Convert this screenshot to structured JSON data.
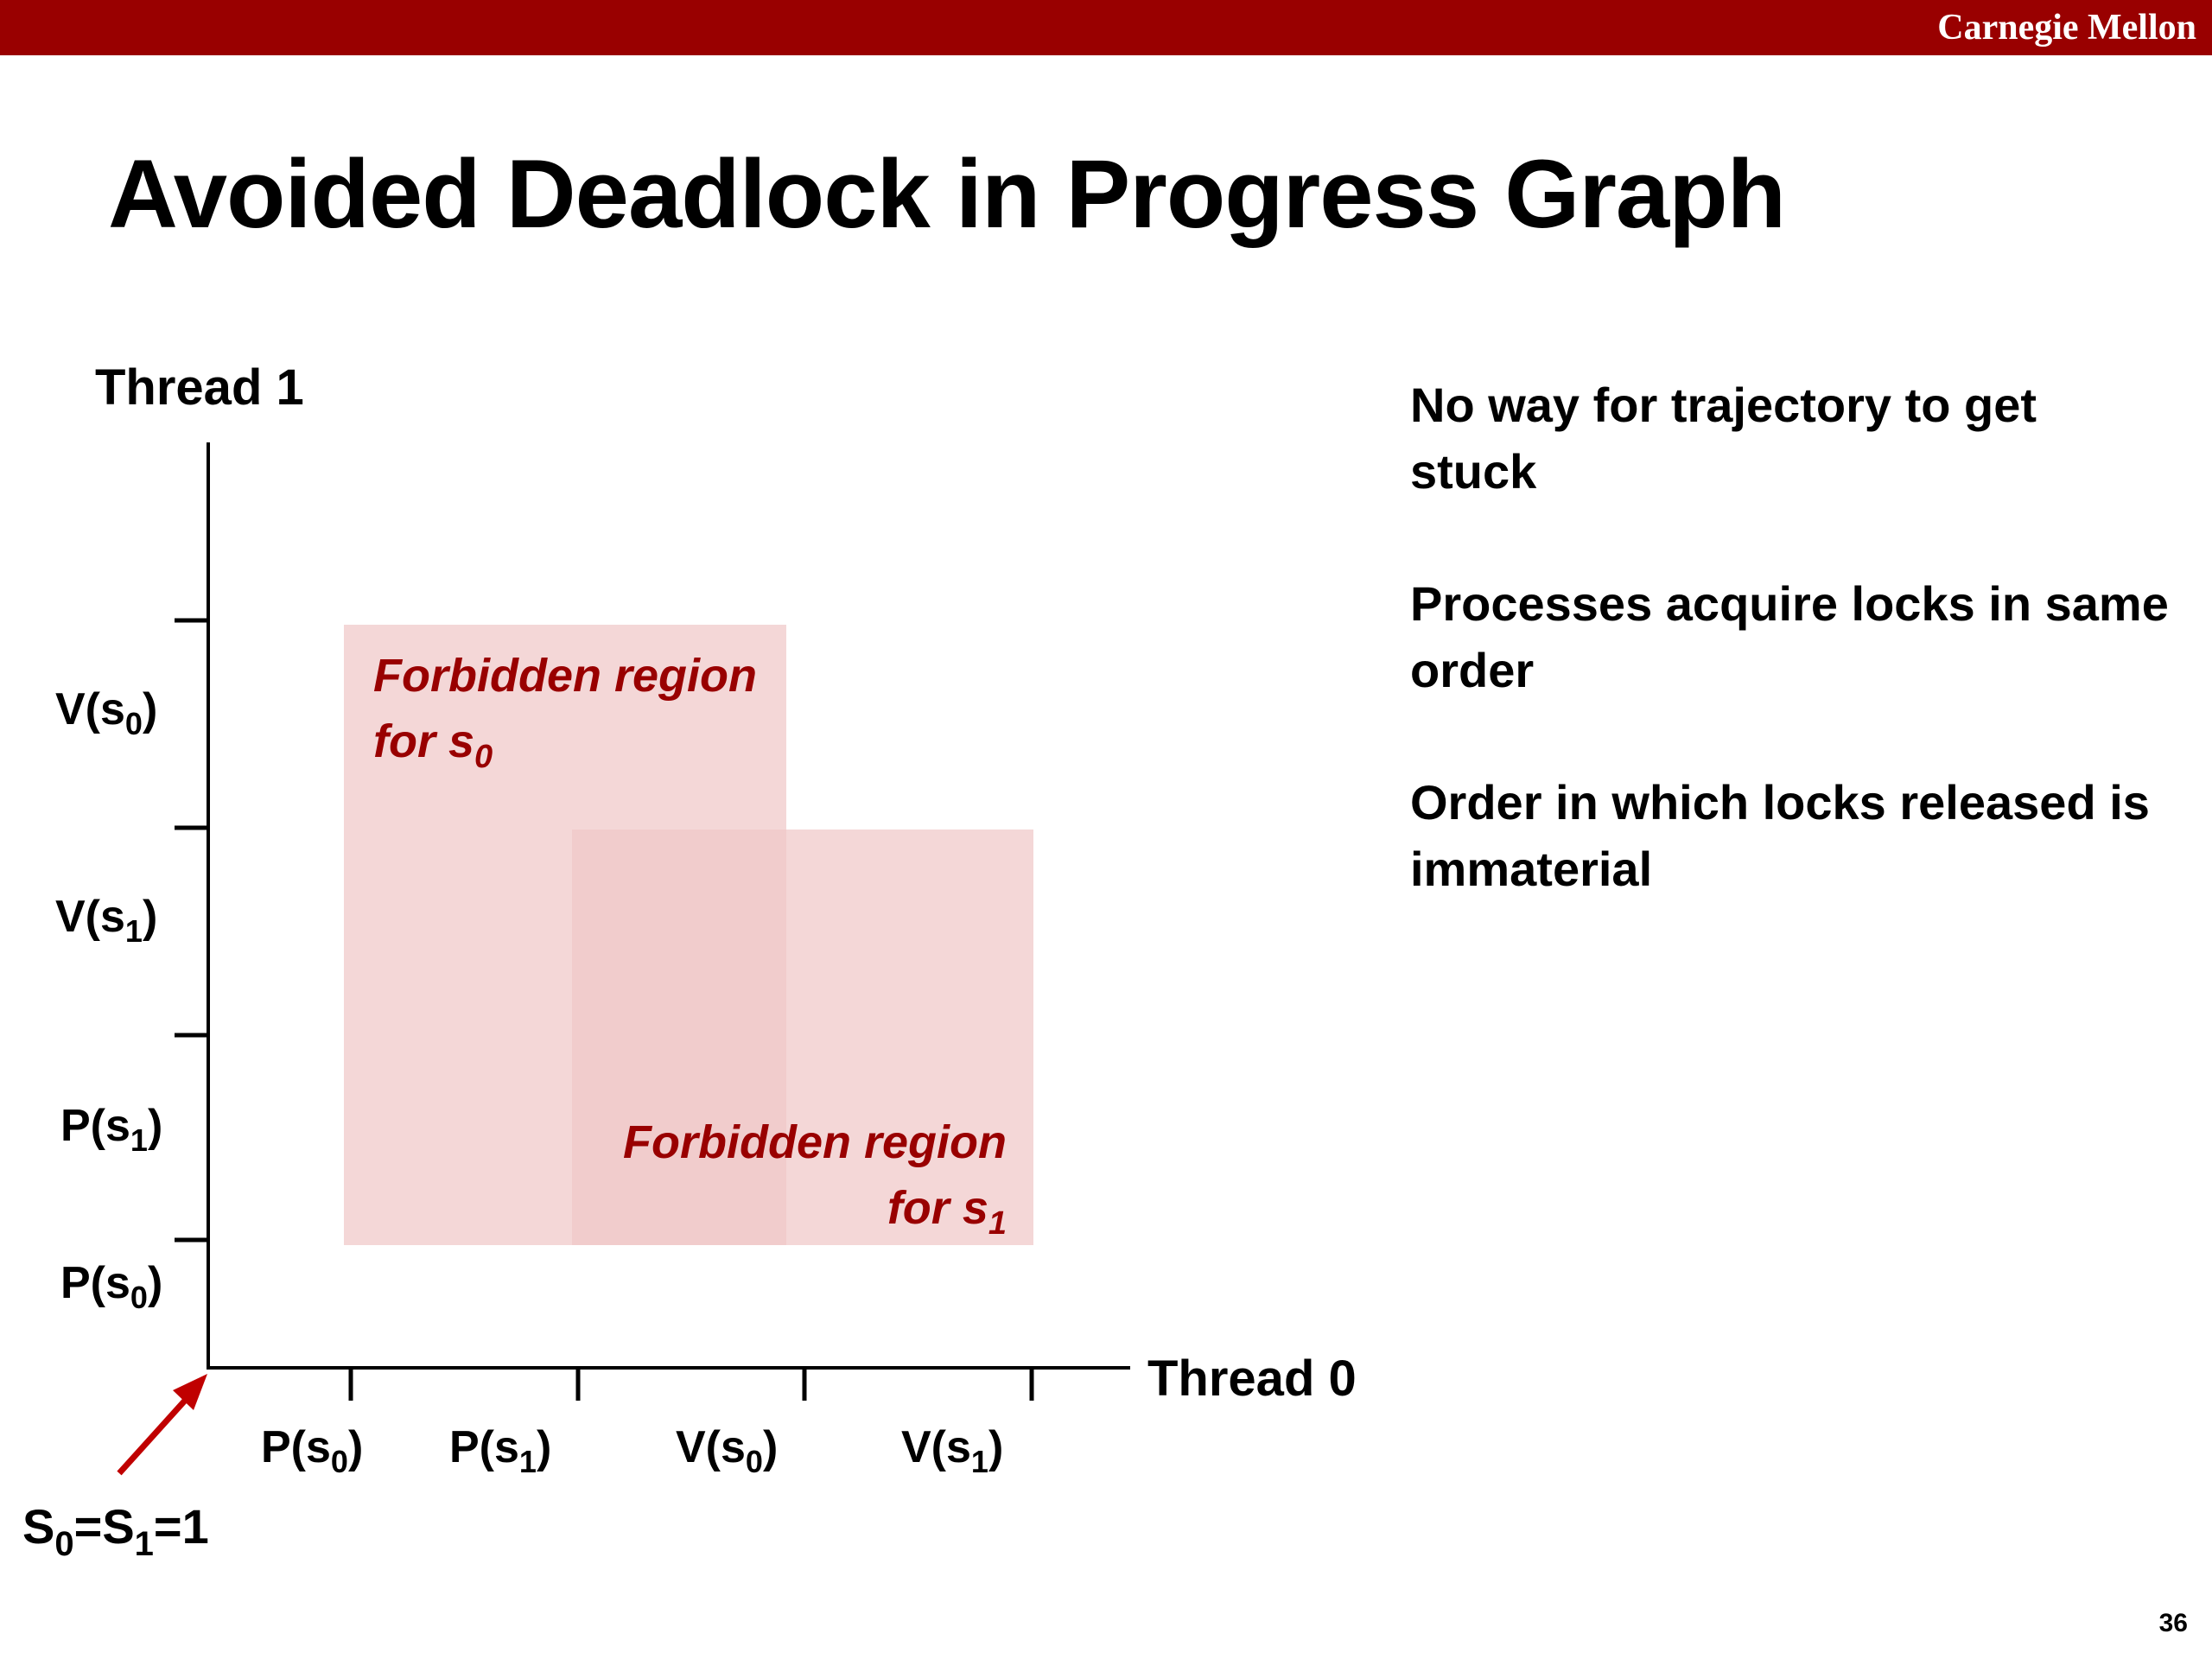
{
  "header": {
    "brand": "Carnegie Mellon",
    "bar_color": "#990000"
  },
  "slide": {
    "title": "Avoided Deadlock in Progress Graph",
    "page_number": "36"
  },
  "diagram": {
    "y_axis_label": "Thread 1",
    "x_axis_label": "Thread 0",
    "origin_label": {
      "s0": "S",
      "sub0": "0",
      "eq1": "=S",
      "sub1": "1",
      "tail": "=1"
    },
    "y_ticks": [
      {
        "base": "P(s",
        "sub": "0",
        "close": ")"
      },
      {
        "base": "P(s",
        "sub": "1",
        "close": ")"
      },
      {
        "base": "V(s",
        "sub": "1",
        "close": ")"
      },
      {
        "base": "V(s",
        "sub": "0",
        "close": ")"
      }
    ],
    "x_ticks": [
      {
        "base": "P(s",
        "sub": "0",
        "close": ")"
      },
      {
        "base": "P(s",
        "sub": "1",
        "close": ")"
      },
      {
        "base": "V(s",
        "sub": "0",
        "close": ")"
      },
      {
        "base": "V(s",
        "sub": "1",
        "close": ")"
      }
    ],
    "regions": [
      {
        "line1": "Forbidden region",
        "line2_base": "for s",
        "line2_sub": "0"
      },
      {
        "line1": "Forbidden region",
        "line2_base": "for s",
        "line2_sub": "1"
      }
    ],
    "region_fill": "#f0c8c8",
    "region_text_color": "#990000",
    "arrow_color": "#c00000"
  },
  "notes": [
    "No way for trajectory to get stuck",
    "Processes acquire locks in same order",
    "Order in which locks released is immaterial"
  ]
}
